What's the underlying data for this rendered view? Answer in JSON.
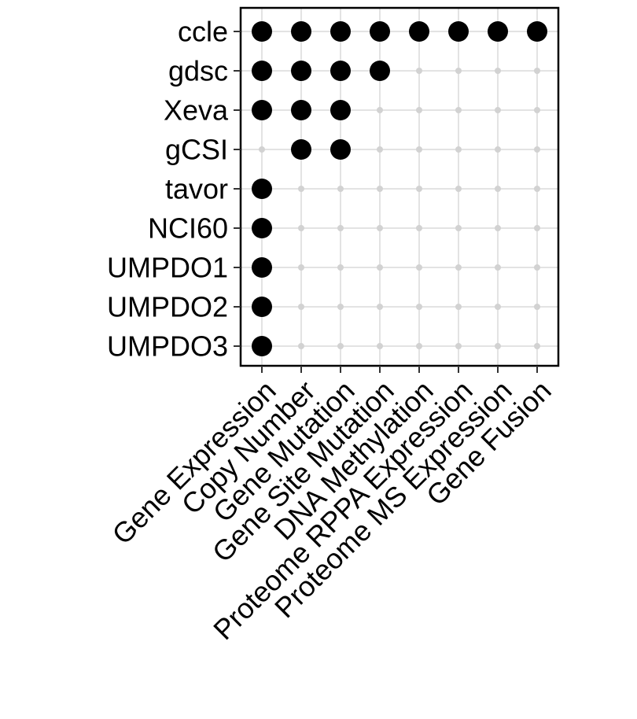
{
  "chart_data": {
    "type": "scatter",
    "title": "",
    "xlabel": "",
    "ylabel": "",
    "grid": true,
    "legend": "none",
    "x_categories": [
      "Gene Expression",
      "Copy Number",
      "Gene Mutation",
      "Gene Site Mutation",
      "DNA Methylation",
      "Proteome RPPA Expression",
      "Proteome MS Expression",
      "Gene Fusion"
    ],
    "y_categories": [
      "ccle",
      "gdsc",
      "Xeva",
      "gCSI",
      "tavor",
      "NCI60",
      "UMPDO1",
      "UMPDO2",
      "UMPDO3"
    ],
    "matrix": [
      [
        1,
        1,
        1,
        1,
        1,
        1,
        1,
        1
      ],
      [
        1,
        1,
        1,
        1,
        0,
        0,
        0,
        0
      ],
      [
        1,
        1,
        1,
        0,
        0,
        0,
        0,
        0
      ],
      [
        0,
        1,
        1,
        0,
        0,
        0,
        0,
        0
      ],
      [
        1,
        0,
        0,
        0,
        0,
        0,
        0,
        0
      ],
      [
        1,
        0,
        0,
        0,
        0,
        0,
        0,
        0
      ],
      [
        1,
        0,
        0,
        0,
        0,
        0,
        0,
        0
      ],
      [
        1,
        0,
        0,
        0,
        0,
        0,
        0,
        0
      ],
      [
        1,
        0,
        0,
        0,
        0,
        0,
        0,
        0
      ]
    ],
    "colors": {
      "present": "#000000",
      "absent": "#d2d2d2",
      "grid": "#e3e3e3"
    }
  }
}
